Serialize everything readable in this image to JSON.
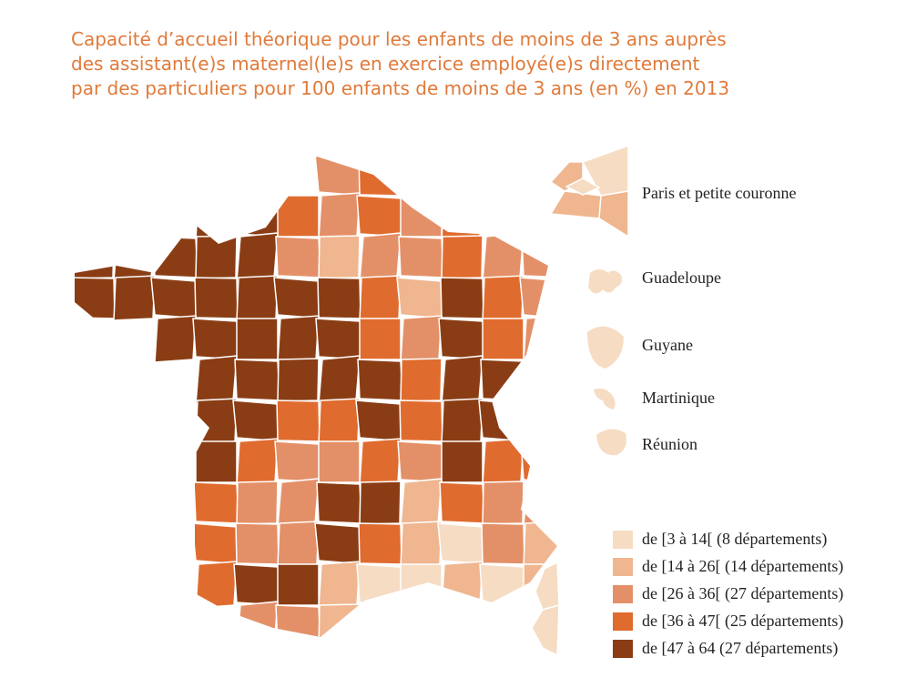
{
  "title": [
    "Capacité d’accueil théorique pour les enfants de moins de 3 ans auprès",
    "des assistant(e)s maternel(le)s en exercice employé(e)s directement",
    "par des particuliers pour 100 enfants de moins de 3 ans (en %) en 2013"
  ],
  "insets": [
    "Paris et petite couronne",
    "Guadeloupe",
    "Guyane",
    "Martinique",
    "Réunion"
  ],
  "legend": [
    {
      "label": "de [3 à 14[ (8 départements)",
      "color": "#f6dcc3"
    },
    {
      "label": "de [14 à 26[ (14 départements)",
      "color": "#efb690"
    },
    {
      "label": "de [26 à 36[ (27 départements)",
      "color": "#e39068"
    },
    {
      "label": "de [36 à 47[ (25 départements)",
      "color": "#e06b2e"
    },
    {
      "label": "de [47 à 64 (27 départements)",
      "color": "#8a3d14"
    }
  ]
}
